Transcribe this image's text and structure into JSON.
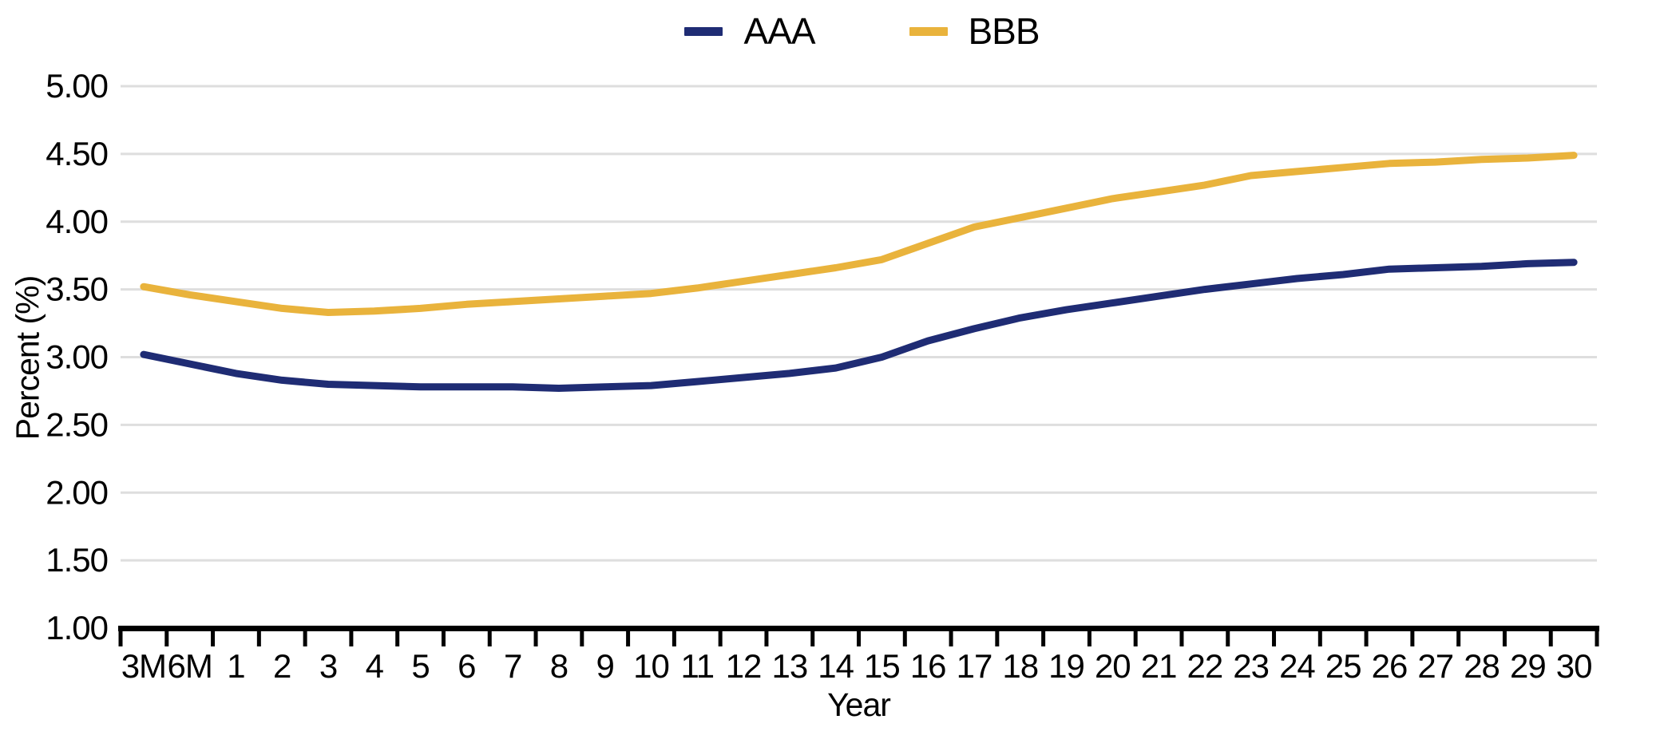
{
  "page": {
    "background": "#FFFFFF"
  },
  "legend": {
    "items": [
      {
        "label": "AAA",
        "color": "#1F2C74"
      },
      {
        "label": "BBB",
        "color": "#E9B33C"
      }
    ]
  },
  "chart_data": {
    "type": "line",
    "title": "",
    "xlabel": "Year",
    "ylabel": "Percent (%)",
    "categories": [
      "3M",
      "6M",
      "1",
      "2",
      "3",
      "4",
      "5",
      "6",
      "7",
      "8",
      "9",
      "10",
      "11",
      "12",
      "13",
      "14",
      "15",
      "16",
      "17",
      "18",
      "19",
      "20",
      "21",
      "22",
      "23",
      "24",
      "25",
      "26",
      "27",
      "28",
      "29",
      "30"
    ],
    "series": [
      {
        "name": "AAA",
        "color": "#1F2C74",
        "values": [
          3.02,
          2.95,
          2.88,
          2.83,
          2.8,
          2.79,
          2.78,
          2.78,
          2.78,
          2.77,
          2.78,
          2.79,
          2.82,
          2.85,
          2.88,
          2.92,
          3.0,
          3.12,
          3.21,
          3.29,
          3.35,
          3.4,
          3.45,
          3.5,
          3.54,
          3.58,
          3.61,
          3.65,
          3.66,
          3.67,
          3.69,
          3.7
        ]
      },
      {
        "name": "BBB",
        "color": "#E9B33C",
        "values": [
          3.52,
          3.46,
          3.41,
          3.36,
          3.33,
          3.34,
          3.36,
          3.39,
          3.41,
          3.43,
          3.45,
          3.47,
          3.51,
          3.56,
          3.61,
          3.66,
          3.72,
          3.84,
          3.96,
          4.03,
          4.1,
          4.17,
          4.22,
          4.27,
          4.34,
          4.37,
          4.4,
          4.43,
          4.44,
          4.46,
          4.47,
          4.49
        ]
      }
    ],
    "ylim": [
      1.0,
      5.0
    ],
    "y_step": 0.5,
    "y_tick_labels": [
      "1.00",
      "1.50",
      "2.00",
      "2.50",
      "3.00",
      "3.50",
      "4.00",
      "4.50",
      "5.00"
    ],
    "grid": true,
    "legend_position": "top",
    "gridline_color": "#DEDEDE",
    "axis_color": "#000000",
    "text_color": "#000000"
  }
}
